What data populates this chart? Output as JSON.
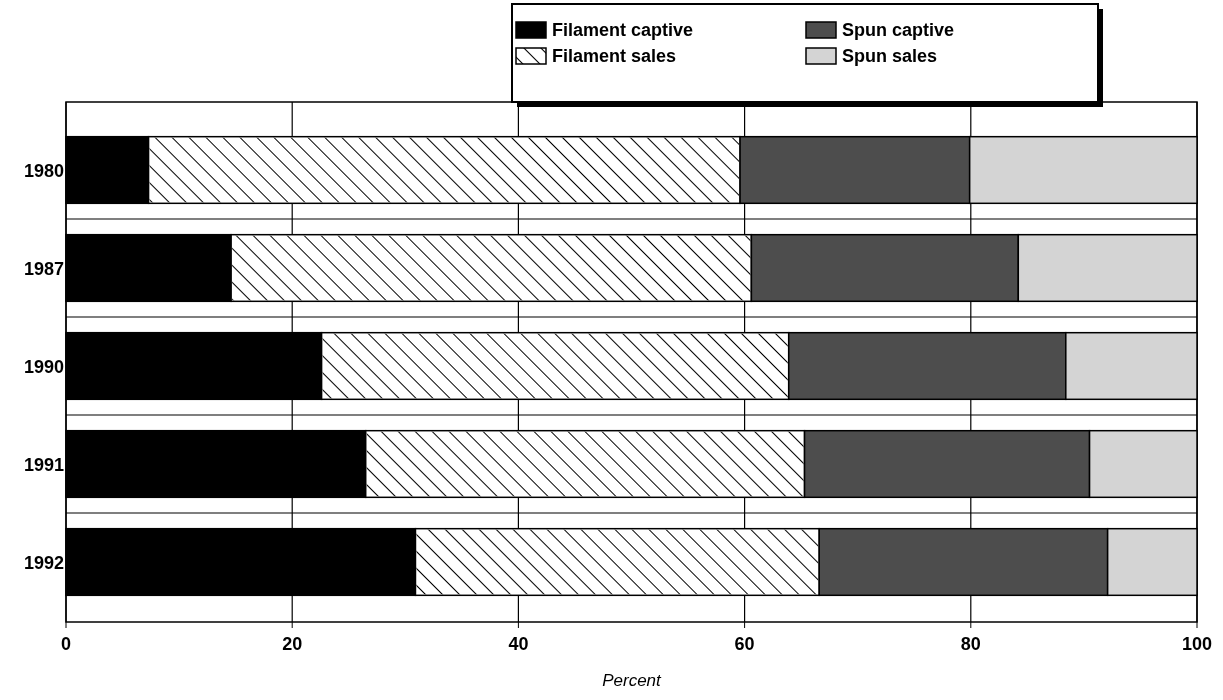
{
  "chart_data": {
    "type": "bar",
    "orientation": "horizontal",
    "stacked": true,
    "xlabel": "Percent",
    "categories": [
      "1980",
      "1987",
      "1990",
      "1991",
      "1992"
    ],
    "series": [
      {
        "name": "Filament captive",
        "color": "#000000",
        "values": [
          7.3,
          14.6,
          22.6,
          26.5,
          30.9
        ]
      },
      {
        "name": "Filament sales",
        "color": "#ffffff",
        "values": [
          52.3,
          46.0,
          41.3,
          38.8,
          35.7
        ]
      },
      {
        "name": "Spun captive",
        "color": "#4d4d4d",
        "values": [
          20.3,
          23.6,
          24.5,
          25.2,
          25.5
        ]
      },
      {
        "name": "Spun sales",
        "color": "#d4d4d4",
        "values": [
          20.1,
          15.8,
          11.6,
          9.5,
          7.9
        ]
      }
    ],
    "xlim": [
      0,
      100
    ],
    "xticks": [
      0,
      20,
      40,
      60,
      80,
      100
    ],
    "grid": true,
    "legend": "top"
  }
}
